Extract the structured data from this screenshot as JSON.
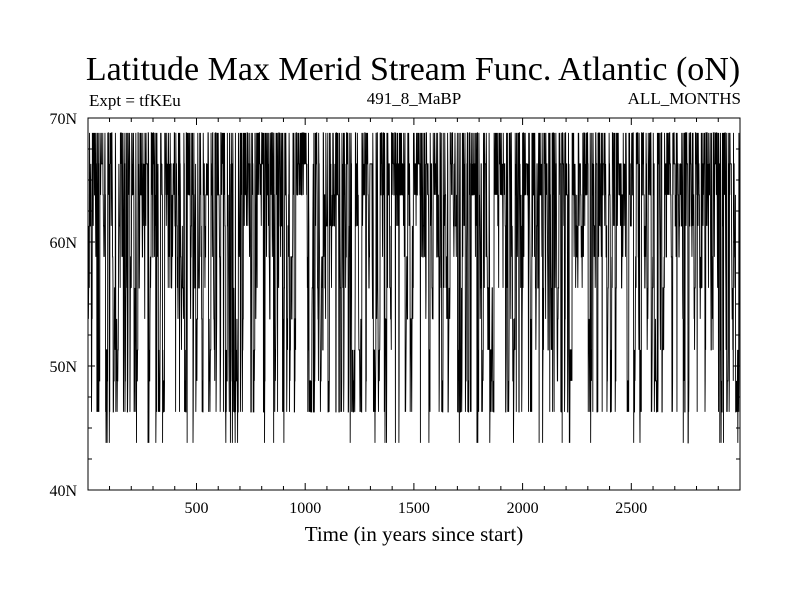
{
  "chart_data": {
    "type": "line",
    "title": "Latitude Max Merid Stream Func. Atlantic (oN)",
    "subtitle_left": "Expt = tfKEu",
    "subtitle_center": "491_8_MaBP",
    "subtitle_right": "ALL_MONTHS",
    "xlabel": "Time (in years since start)",
    "ylabel": "",
    "xlim": [
      1,
      3000
    ],
    "ylim": [
      40,
      70
    ],
    "x_ticks": [
      500,
      1000,
      1500,
      2000,
      2500
    ],
    "x_tick_labels": [
      "500",
      "1000",
      "1500",
      "2000",
      "2500"
    ],
    "y_ticks": [
      40,
      50,
      60,
      70
    ],
    "y_tick_labels": [
      "40N",
      "50N",
      "60N",
      "70N"
    ],
    "grid": false,
    "series": [
      {
        "color": "#000000",
        "latitude_levels": [
          43.8,
          46.3,
          48.8,
          51.3,
          53.8,
          56.3,
          58.8,
          61.3,
          63.8,
          66.3,
          68.8
        ],
        "typical_range": [
          46.3,
          68.8
        ],
        "occasional_minimum": 43.8,
        "mean_level": 56.3,
        "sampling_interval_years": 1,
        "n_points": 3000
      }
    ]
  }
}
